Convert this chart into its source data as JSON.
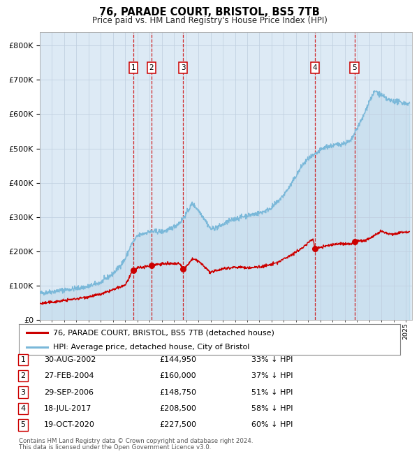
{
  "title": "76, PARADE COURT, BRISTOL, BS5 7TB",
  "subtitle": "Price paid vs. HM Land Registry's House Price Index (HPI)",
  "footnote1": "Contains HM Land Registry data © Crown copyright and database right 2024.",
  "footnote2": "This data is licensed under the Open Government Licence v3.0.",
  "legend_red": "76, PARADE COURT, BRISTOL, BS5 7TB (detached house)",
  "legend_blue": "HPI: Average price, detached house, City of Bristol",
  "sale_dates_num": [
    2002.67,
    2004.16,
    2006.75,
    2017.54,
    2020.8
  ],
  "sale_prices": [
    144950,
    160000,
    148750,
    208500,
    227500
  ],
  "sale_labels": [
    "1",
    "2",
    "3",
    "4",
    "5"
  ],
  "sale_info": [
    [
      "1",
      "30-AUG-2002",
      "£144,950",
      "33% ↓ HPI"
    ],
    [
      "2",
      "27-FEB-2004",
      "£160,000",
      "37% ↓ HPI"
    ],
    [
      "3",
      "29-SEP-2006",
      "£148,750",
      "51% ↓ HPI"
    ],
    [
      "4",
      "18-JUL-2017",
      "£208,500",
      "58% ↓ HPI"
    ],
    [
      "5",
      "19-OCT-2020",
      "£227,500",
      "60% ↓ HPI"
    ]
  ],
  "hpi_color": "#7ab8d9",
  "price_color": "#cc0000",
  "bg_color": "#ddeaf5",
  "grid_color": "#c0cfe0",
  "vline_color": "#cc0000",
  "ylim": [
    0,
    840000
  ],
  "xlim_start": 1995.0,
  "xlim_end": 2025.5,
  "hpi_anchors_x": [
    1995.0,
    1996.0,
    1997.0,
    1998.0,
    1999.0,
    2000.0,
    2001.0,
    2001.5,
    2002.0,
    2002.5,
    2003.0,
    2003.5,
    2004.0,
    2004.5,
    2005.0,
    2005.5,
    2006.0,
    2006.5,
    2007.0,
    2007.5,
    2008.0,
    2008.5,
    2009.0,
    2009.5,
    2010.0,
    2010.5,
    2011.0,
    2011.5,
    2012.0,
    2012.5,
    2013.0,
    2013.5,
    2014.0,
    2014.5,
    2015.0,
    2015.5,
    2016.0,
    2016.5,
    2017.0,
    2017.5,
    2018.0,
    2018.5,
    2019.0,
    2019.5,
    2020.0,
    2020.5,
    2021.0,
    2021.5,
    2022.0,
    2022.5,
    2023.0,
    2023.5,
    2024.0,
    2024.5,
    2025.3
  ],
  "hpi_anchors_y": [
    78000,
    83000,
    88000,
    92000,
    98000,
    110000,
    135000,
    155000,
    178000,
    220000,
    245000,
    252000,
    258000,
    258000,
    258000,
    262000,
    272000,
    285000,
    310000,
    340000,
    320000,
    295000,
    265000,
    270000,
    278000,
    288000,
    295000,
    300000,
    305000,
    308000,
    312000,
    318000,
    328000,
    345000,
    365000,
    390000,
    420000,
    450000,
    470000,
    480000,
    495000,
    505000,
    508000,
    512000,
    516000,
    522000,
    558000,
    592000,
    638000,
    668000,
    655000,
    642000,
    638000,
    635000,
    630000
  ],
  "price_anchors_x": [
    1995.0,
    1996.0,
    1997.0,
    1998.0,
    1999.0,
    2000.0,
    2001.0,
    2002.0,
    2002.67,
    2003.0,
    2003.5,
    2004.0,
    2004.16,
    2004.5,
    2005.0,
    2005.5,
    2006.0,
    2006.5,
    2006.75,
    2007.0,
    2007.5,
    2008.0,
    2008.5,
    2009.0,
    2009.5,
    2010.0,
    2010.5,
    2011.0,
    2011.5,
    2012.0,
    2012.5,
    2013.0,
    2013.5,
    2014.0,
    2014.5,
    2015.0,
    2015.5,
    2016.0,
    2016.5,
    2017.0,
    2017.4,
    2017.54,
    2018.0,
    2018.5,
    2019.0,
    2019.5,
    2020.0,
    2020.5,
    2020.8,
    2021.0,
    2021.5,
    2022.0,
    2022.5,
    2023.0,
    2023.5,
    2024.0,
    2024.5,
    2025.3
  ],
  "price_anchors_y": [
    48000,
    52000,
    57000,
    62000,
    68000,
    75000,
    88000,
    102000,
    144950,
    152000,
    155000,
    158000,
    160000,
    162000,
    164000,
    164000,
    164000,
    163000,
    148750,
    155000,
    178000,
    172000,
    155000,
    138000,
    145000,
    150000,
    152000,
    154000,
    154000,
    152000,
    153000,
    155000,
    158000,
    162000,
    168000,
    178000,
    188000,
    198000,
    210000,
    225000,
    238000,
    208500,
    212000,
    216000,
    220000,
    222000,
    222000,
    221000,
    227500,
    232000,
    230000,
    238000,
    248000,
    258000,
    252000,
    250000,
    255000,
    258000
  ]
}
